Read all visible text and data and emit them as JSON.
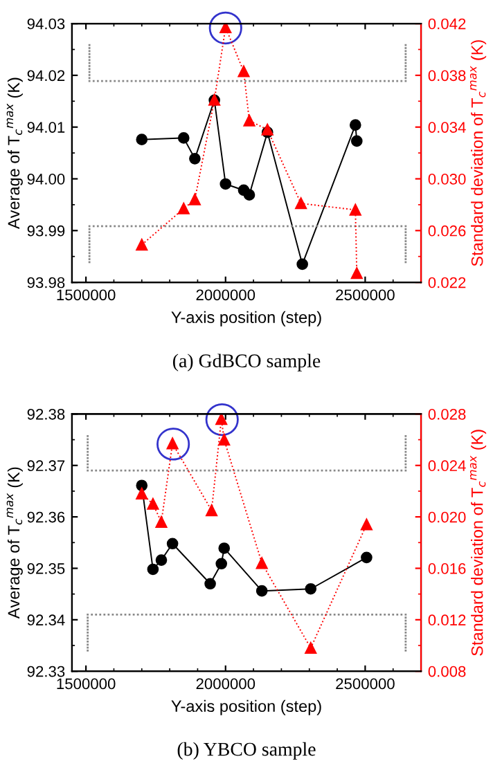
{
  "chart_data": [
    {
      "type": "line",
      "title": "(a) GdBCO sample",
      "xlabel": "Y-axis position (step)",
      "ylabel": "Average of T$_{c}$$^{max}$ (K)",
      "y2label": "Standard deviation of T$_{c}$$^{max}$ (K)",
      "xlim": [
        1450000,
        2700000
      ],
      "xticks": [
        1500000,
        2000000,
        2500000
      ],
      "ylim": [
        93.98,
        94.03
      ],
      "yticks": [
        93.98,
        93.99,
        {
          "value": 94.0,
          "label": "94.00"
        },
        94.01,
        94.02,
        94.03
      ],
      "y2lim": [
        0.022,
        0.042
      ],
      "y2ticks": [
        0.022,
        0.026,
        {
          "value": 0.03,
          "label": "0.030"
        },
        0.034,
        0.038,
        0.042
      ],
      "series": [
        {
          "color": "#000000",
          "marker": "circle",
          "line_style": "solid",
          "x": [
            1700000,
            1850000,
            1890000,
            1960000,
            2000000,
            2065000,
            2085000,
            2150000,
            2275000,
            2465000,
            2470000
          ],
          "values": [
            94.0076,
            94.0079,
            94.0039,
            94.0152,
            93.999,
            93.9978,
            93.9969,
            94.009,
            93.9835,
            94.0104,
            94.0073
          ]
        },
        {
          "color": "#ff0000",
          "marker": "triangle",
          "line_style": "dotted",
          "axis": "y2",
          "x": [
            1700000,
            1850000,
            1890000,
            1960000,
            2000000,
            2065000,
            2085000,
            2150000,
            2270000,
            2465000,
            2470000
          ],
          "values": [
            0.0249,
            0.0277,
            0.0284,
            0.0361,
            0.0417,
            0.0383,
            0.0345,
            0.0338,
            0.0281,
            0.0276,
            0.0227
          ]
        }
      ]
    },
    {
      "type": "line",
      "title": "(b) YBCO sample",
      "xlabel": "Y-axis position (step)",
      "ylabel": "Average of T$_{c}$$^{max}$ (K)",
      "y2label": "Standard deviation of T$_{c}$$^{max}$ (K)",
      "xlim": [
        1450000,
        2700000
      ],
      "xticks": [
        1500000,
        2000000,
        2500000
      ],
      "ylim": [
        92.33,
        92.38
      ],
      "yticks": [
        92.33,
        92.34,
        92.35,
        92.36,
        92.37,
        92.38
      ],
      "y2lim": [
        0.008,
        0.028
      ],
      "y2ticks": [
        0.008,
        0.012,
        0.016,
        {
          "value": 0.02,
          "label": "0.020"
        },
        0.024,
        0.028
      ],
      "series": [
        {
          "color": "#000000",
          "marker": "circle",
          "line_style": "solid",
          "x": [
            1700000,
            1740000,
            1770000,
            1810000,
            1945000,
            1985000,
            1995000,
            2130000,
            2305000,
            2505000
          ],
          "values": [
            92.3661,
            92.3498,
            92.3516,
            92.3548,
            92.347,
            92.3509,
            92.3539,
            92.3456,
            92.346,
            92.3521
          ]
        },
        {
          "color": "#ff0000",
          "marker": "triangle",
          "line_style": "dotted",
          "axis": "y2",
          "x": [
            1700000,
            1740000,
            1770000,
            1810000,
            1950000,
            1985000,
            1995000,
            2130000,
            2305000,
            2505000
          ],
          "values": [
            0.0218,
            0.021,
            0.0196,
            0.0257,
            0.0205,
            0.0276,
            0.026,
            0.0164,
            0.0098,
            0.0194
          ]
        }
      ]
    }
  ]
}
